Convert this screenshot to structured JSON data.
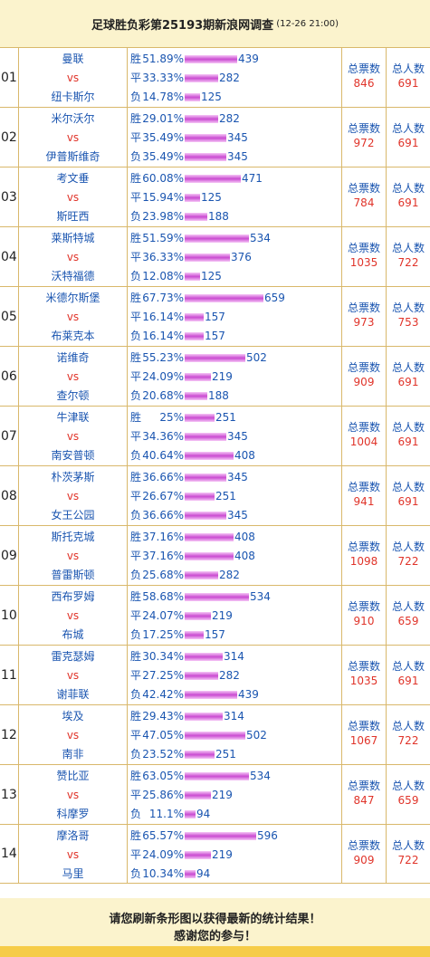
{
  "header": {
    "title": "足球胜负彩第25193期新浪网调查",
    "date": "(12-26 21:00)"
  },
  "labels": {
    "win": "胜",
    "draw": "平",
    "loss": "负",
    "vs": "vs",
    "total_votes": "总票数",
    "total_people": "总人数"
  },
  "matches": [
    {
      "no": "01",
      "home": "曼联",
      "away": "纽卡斯尔",
      "win_pct": "51.89%",
      "win": 439,
      "draw_pct": "33.33%",
      "draw": 282,
      "loss_pct": "14.78%",
      "loss": 125,
      "total": "846",
      "people": "691"
    },
    {
      "no": "02",
      "home": "米尔沃尔",
      "away": "伊普斯维奇",
      "win_pct": "29.01%",
      "win": 282,
      "draw_pct": "35.49%",
      "draw": 345,
      "loss_pct": "35.49%",
      "loss": 345,
      "total": "972",
      "people": "691"
    },
    {
      "no": "03",
      "home": "考文垂",
      "away": "斯旺西",
      "win_pct": "60.08%",
      "win": 471,
      "draw_pct": "15.94%",
      "draw": 125,
      "loss_pct": "23.98%",
      "loss": 188,
      "total": "784",
      "people": "691"
    },
    {
      "no": "04",
      "home": "莱斯特城",
      "away": "沃特福德",
      "win_pct": "51.59%",
      "win": 534,
      "draw_pct": "36.33%",
      "draw": 376,
      "loss_pct": "12.08%",
      "loss": 125,
      "total": "1035",
      "people": "722"
    },
    {
      "no": "05",
      "home": "米德尔斯堡",
      "away": "布莱克本",
      "win_pct": "67.73%",
      "win": 659,
      "draw_pct": "16.14%",
      "draw": 157,
      "loss_pct": "16.14%",
      "loss": 157,
      "total": "973",
      "people": "753"
    },
    {
      "no": "06",
      "home": "诺维奇",
      "away": "查尔顿",
      "win_pct": "55.23%",
      "win": 502,
      "draw_pct": "24.09%",
      "draw": 219,
      "loss_pct": "20.68%",
      "loss": 188,
      "total": "909",
      "people": "691"
    },
    {
      "no": "07",
      "home": "牛津联",
      "away": "南安普顿",
      "win_pct": "25%",
      "win": 251,
      "draw_pct": "34.36%",
      "draw": 345,
      "loss_pct": "40.64%",
      "loss": 408,
      "total": "1004",
      "people": "691"
    },
    {
      "no": "08",
      "home": "朴茨茅斯",
      "away": "女王公园",
      "win_pct": "36.66%",
      "win": 345,
      "draw_pct": "26.67%",
      "draw": 251,
      "loss_pct": "36.66%",
      "loss": 345,
      "total": "941",
      "people": "691"
    },
    {
      "no": "09",
      "home": "斯托克城",
      "away": "普雷斯顿",
      "win_pct": "37.16%",
      "win": 408,
      "draw_pct": "37.16%",
      "draw": 408,
      "loss_pct": "25.68%",
      "loss": 282,
      "total": "1098",
      "people": "722"
    },
    {
      "no": "10",
      "home": "西布罗姆",
      "away": "布城",
      "win_pct": "58.68%",
      "win": 534,
      "draw_pct": "24.07%",
      "draw": 219,
      "loss_pct": "17.25%",
      "loss": 157,
      "total": "910",
      "people": "659"
    },
    {
      "no": "11",
      "home": "雷克瑟姆",
      "away": "谢菲联",
      "win_pct": "30.34%",
      "win": 314,
      "draw_pct": "27.25%",
      "draw": 282,
      "loss_pct": "42.42%",
      "loss": 439,
      "total": "1035",
      "people": "691"
    },
    {
      "no": "12",
      "home": "埃及",
      "away": "南非",
      "win_pct": "29.43%",
      "win": 314,
      "draw_pct": "47.05%",
      "draw": 502,
      "loss_pct": "23.52%",
      "loss": 251,
      "total": "1067",
      "people": "722"
    },
    {
      "no": "13",
      "home": "赞比亚",
      "away": "科摩罗",
      "win_pct": "63.05%",
      "win": 534,
      "draw_pct": "25.86%",
      "draw": 219,
      "loss_pct": "11.1%",
      "loss": 94,
      "total": "847",
      "people": "659"
    },
    {
      "no": "14",
      "home": "摩洛哥",
      "away": "马里",
      "win_pct": "65.57%",
      "win": 596,
      "draw_pct": "24.09%",
      "draw": 219,
      "loss_pct": "10.34%",
      "loss": 94,
      "total": "909",
      "people": "722"
    }
  ],
  "footer": {
    "line1": "请您刷新条形图以获得最新的统计结果！",
    "line2": "感谢您的参与！"
  },
  "colors": {
    "header_bg": "#fbf3cd",
    "team_text": "#1a55b0",
    "vs_text": "#e0342a",
    "bar_mid": "#c94bd1",
    "footer_stripe": "#f6cc48"
  }
}
